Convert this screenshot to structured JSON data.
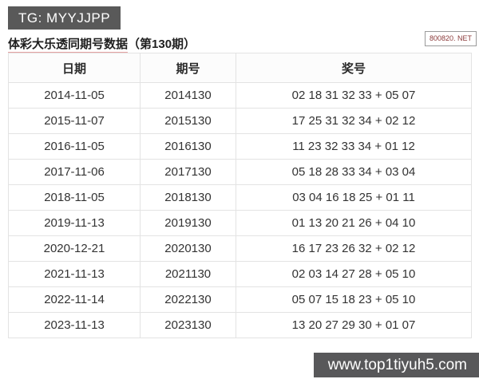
{
  "badges": {
    "tg": "TG: MYYJJPP",
    "site": "800820. NET",
    "watermark": "www.top1tiyuh5.com"
  },
  "title": {
    "main": "体彩大乐透同期号数据",
    "suffix": "（第130期）"
  },
  "table": {
    "headers": [
      "日期",
      "期号",
      "奖号"
    ],
    "rows": [
      [
        "2014-11-05",
        "2014130",
        "02 18 31 32 33 + 05 07"
      ],
      [
        "2015-11-07",
        "2015130",
        "17 25 31 32 34 + 02 12"
      ],
      [
        "2016-11-05",
        "2016130",
        "11 23 32 33 34 + 01 12"
      ],
      [
        "2017-11-06",
        "2017130",
        "05 18 28 33 34 + 03 04"
      ],
      [
        "2018-11-05",
        "2018130",
        "03 04 16 18 25 + 01 11"
      ],
      [
        "2019-11-13",
        "2019130",
        "01 13 20 21 26 + 04 10"
      ],
      [
        "2020-12-21",
        "2020130",
        "16 17 23 26 32 + 02 12"
      ],
      [
        "2021-11-13",
        "2021130",
        "02 03 14 27 28 + 05 10"
      ],
      [
        "2022-11-14",
        "2022130",
        "05 07 15 18 23 + 05 10"
      ],
      [
        "2023-11-13",
        "2023130",
        "13 20 27 29 30 + 01 07"
      ]
    ]
  },
  "colors": {
    "tg_badge_bg": "#595959",
    "watermark_bg": "#58585a",
    "site_badge_text": "#8b3a3a",
    "table_border": "#e3e3e3",
    "title_underline": "#d67070"
  }
}
